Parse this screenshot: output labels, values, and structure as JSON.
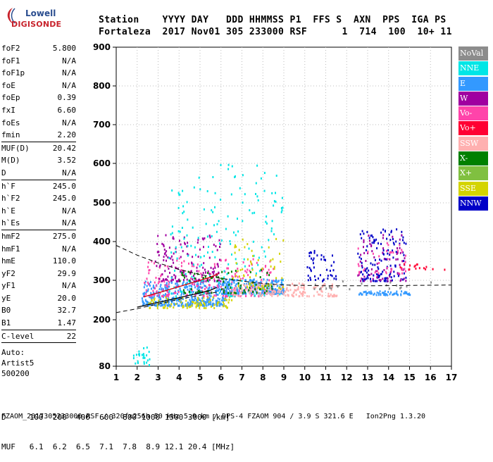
{
  "logo": {
    "top": "Lowell",
    "bottom": "DIGISONDE"
  },
  "header": {
    "row1": "Station    YYYY DAY   DDD HHMMSS P1  FFS S  AXN  PPS  IGA PS",
    "row2": "Fortaleza  2017 Nov01 305 233000 RSF      1  714  100  10+ 11"
  },
  "params": [
    [
      {
        "label": "foF2",
        "value": "5.800"
      },
      {
        "label": "foF1",
        "value": "N/A"
      },
      {
        "label": "foF1p",
        "value": "N/A"
      },
      {
        "label": "foE",
        "value": "N/A"
      },
      {
        "label": "foEp",
        "value": "0.39"
      },
      {
        "label": "fxI",
        "value": "6.60"
      },
      {
        "label": "foEs",
        "value": "N/A"
      },
      {
        "label": "fmin",
        "value": "2.20"
      }
    ],
    [
      {
        "label": "MUF(D)",
        "value": "20.42"
      },
      {
        "label": "M(D)",
        "value": "3.52"
      },
      {
        "label": "D",
        "value": "N/A"
      }
    ],
    [
      {
        "label": "h`F",
        "value": "245.0"
      },
      {
        "label": "h`F2",
        "value": "245.0"
      },
      {
        "label": "h`E",
        "value": "N/A"
      },
      {
        "label": "h`Es",
        "value": "N/A"
      }
    ],
    [
      {
        "label": "hmF2",
        "value": "275.0"
      },
      {
        "label": "hmF1",
        "value": "N/A"
      },
      {
        "label": "hmE",
        "value": "110.0"
      },
      {
        "label": "yF2",
        "value": "29.9"
      },
      {
        "label": "yF1",
        "value": "N/A"
      },
      {
        "label": "yE",
        "value": "20.0"
      },
      {
        "label": "B0",
        "value": "32.7"
      },
      {
        "label": "B1",
        "value": "1.47"
      }
    ],
    [
      {
        "label": "C-level",
        "value": "22"
      }
    ]
  ],
  "scaler": {
    "line1": "Auto:",
    "line2": "Artist5",
    "line3": "500200"
  },
  "legend": [
    {
      "label": "NoVal",
      "color": "#8c8c8c"
    },
    {
      "label": "NNE",
      "color": "#00e6e6"
    },
    {
      "label": "E",
      "color": "#3399ff"
    },
    {
      "label": "W",
      "color": "#a000a0"
    },
    {
      "label": "Vo-",
      "color": "#ff44aa"
    },
    {
      "label": "Vo+",
      "color": "#ff0033"
    },
    {
      "label": "SSW",
      "color": "#ffb0b0"
    },
    {
      "label": "X-",
      "color": "#008000"
    },
    {
      "label": "X+",
      "color": "#80c040"
    },
    {
      "label": "SSE",
      "color": "#d4d400"
    },
    {
      "label": "NNW",
      "color": "#0000c8"
    }
  ],
  "bottom": {
    "d_row": "D     100  200  400  600  800 1000 1500 3000 [km]",
    "muf_row": "MUF   6.1  6.2  6.5  7.1  7.8  8.9 12.1 20.4 [MHz]"
  },
  "footer": "FZAOM_2017305233000.RSF / 320fx256h 50 kHz 5.0 km / DPS-4 FZAOM 904 / 3.9 S 321.6 E   Ion2Png 1.3.20",
  "chart_data": {
    "type": "scatter",
    "title": "",
    "xlabel": "",
    "ylabel": "",
    "xlim": [
      1,
      17
    ],
    "ylim": [
      80,
      900
    ],
    "x_ticks": [
      1,
      2,
      3,
      4,
      5,
      6,
      7,
      8,
      9,
      10,
      11,
      12,
      13,
      14,
      15,
      16,
      17
    ],
    "y_ticks": [
      80,
      200,
      300,
      400,
      500,
      600,
      700,
      800,
      900
    ],
    "grid": true,
    "regions": [
      {
        "name": "E",
        "color": "#3399ff",
        "x": [
          2.2,
          6.2
        ],
        "y": [
          238,
          300
        ],
        "n": 420
      },
      {
        "name": "SSE",
        "color": "#d4d400",
        "x": [
          2.5,
          6.5
        ],
        "y": [
          232,
          262
        ],
        "n": 90
      },
      {
        "name": "Vo-",
        "color": "#ff44aa",
        "x": [
          2.3,
          8.5
        ],
        "y": [
          262,
          360
        ],
        "n": 230
      },
      {
        "name": "W",
        "color": "#a000a0",
        "x": [
          2.8,
          6.0
        ],
        "y": [
          300,
          420
        ],
        "n": 150
      },
      {
        "name": "NNE",
        "color": "#00e6e6",
        "x": [
          3.5,
          9.0
        ],
        "y": [
          262,
          600
        ],
        "n": 180
      },
      {
        "name": "E",
        "color": "#3399ff",
        "x": [
          6.0,
          9.0
        ],
        "y": [
          268,
          305
        ],
        "n": 220
      },
      {
        "name": "SSW",
        "color": "#ffb0b0",
        "x": [
          6.5,
          11.5
        ],
        "y": [
          262,
          295
        ],
        "n": 170
      },
      {
        "name": "X-",
        "color": "#008000",
        "x": [
          4.0,
          8.5
        ],
        "y": [
          270,
          330
        ],
        "n": 80
      },
      {
        "name": "NNW",
        "color": "#0000c8",
        "x": [
          10.0,
          11.5
        ],
        "y": [
          300,
          380
        ],
        "n": 45
      },
      {
        "name": "NNW",
        "color": "#0000c8",
        "x": [
          12.5,
          14.8
        ],
        "y": [
          300,
          435
        ],
        "n": 130
      },
      {
        "name": "W",
        "color": "#a000a0",
        "x": [
          12.5,
          14.8
        ],
        "y": [
          300,
          420
        ],
        "n": 70
      },
      {
        "name": "E",
        "color": "#3399ff",
        "x": [
          12.5,
          15.0
        ],
        "y": [
          265,
          275
        ],
        "n": 60
      },
      {
        "name": "Vo+",
        "color": "#ff0033",
        "x": [
          14.5,
          16.8
        ],
        "y": [
          330,
          345
        ],
        "n": 18
      },
      {
        "name": "SSE",
        "color": "#d4d400",
        "x": [
          6.5,
          9.0
        ],
        "y": [
          280,
          420
        ],
        "n": 60
      },
      {
        "name": "NoVal",
        "color": "#8c8c8c",
        "x": [
          10.0,
          16.8
        ],
        "y": [
          280,
          300
        ],
        "n": 20
      },
      {
        "name": "Vo-",
        "color": "#ff44aa",
        "x": [
          12.5,
          14.8
        ],
        "y": [
          320,
          400
        ],
        "n": 40
      },
      {
        "name": "NNE",
        "color": "#00e6e6",
        "x": [
          1.8,
          2.6
        ],
        "y": [
          85,
          135
        ],
        "n": 25
      }
    ],
    "trace_solid": [
      [
        2.0,
        232
      ],
      [
        2.5,
        238
      ],
      [
        3,
        244
      ],
      [
        3.5,
        250
      ],
      [
        4,
        256
      ],
      [
        4.5,
        262
      ],
      [
        5,
        268
      ],
      [
        5.5,
        275
      ],
      [
        5.8,
        282
      ]
    ],
    "trace_red": [
      [
        2.3,
        258
      ],
      [
        3,
        268
      ],
      [
        3.5,
        276
      ],
      [
        4,
        284
      ],
      [
        4.5,
        292
      ],
      [
        5,
        300
      ],
      [
        5.5,
        308
      ],
      [
        5.9,
        318
      ]
    ],
    "trace_dashed": [
      [
        1,
        390
      ],
      [
        2,
        365
      ],
      [
        3,
        345
      ],
      [
        4,
        328
      ],
      [
        5,
        315
      ],
      [
        6,
        305
      ],
      [
        7,
        298
      ],
      [
        8,
        292
      ],
      [
        9,
        288
      ],
      [
        11,
        286
      ],
      [
        13,
        286
      ],
      [
        15,
        287
      ],
      [
        17,
        288
      ]
    ],
    "trace_dashed_low": [
      [
        1,
        218
      ],
      [
        2,
        228
      ],
      [
        3,
        240
      ],
      [
        4,
        252
      ],
      [
        5,
        262
      ],
      [
        5.8,
        270
      ]
    ]
  }
}
